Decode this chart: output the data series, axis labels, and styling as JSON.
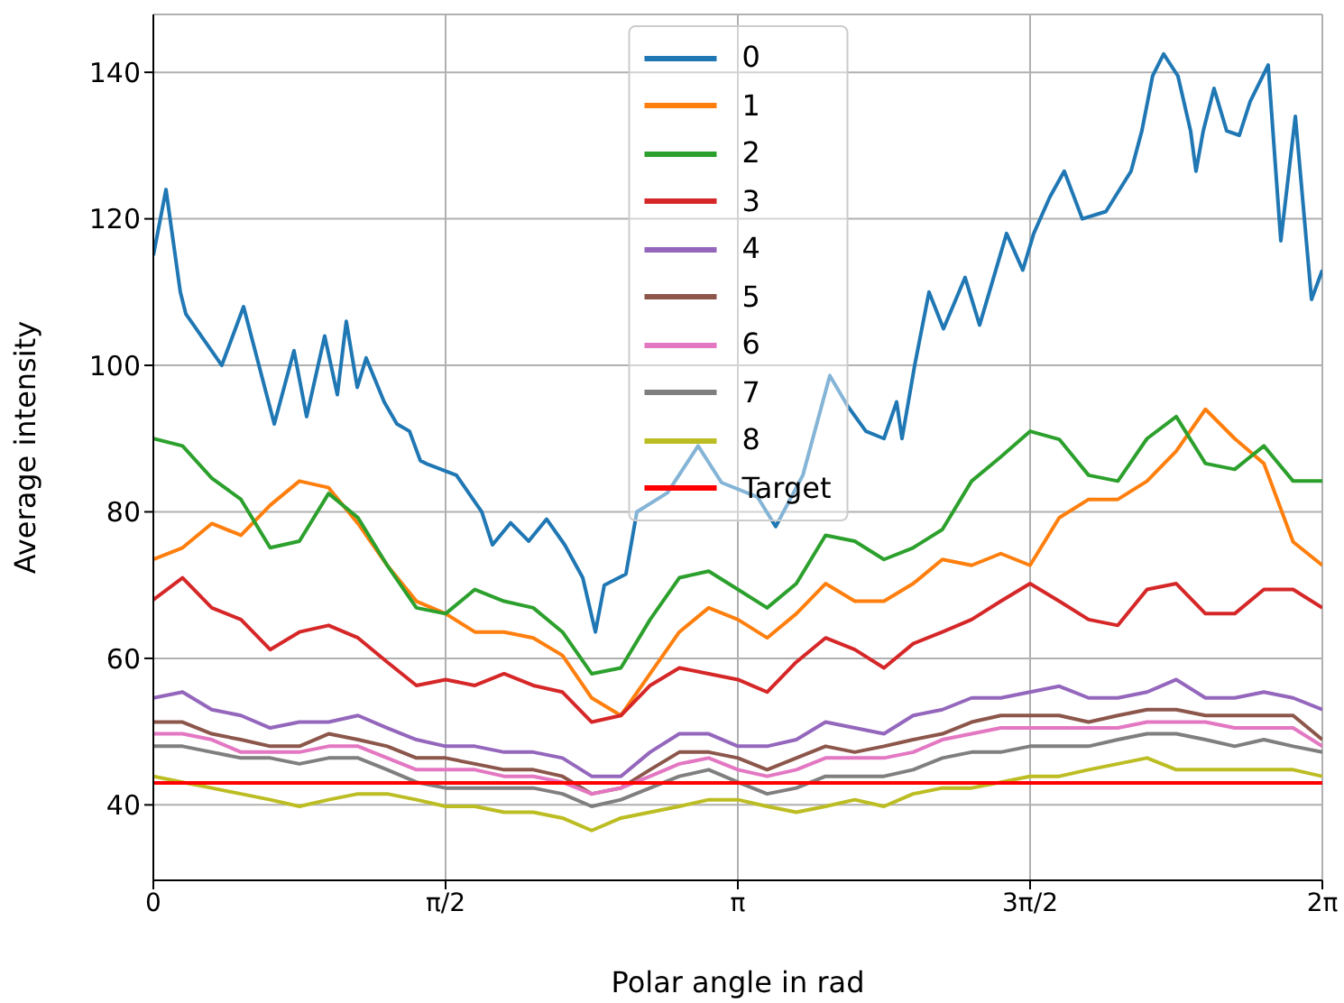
{
  "chart_data": {
    "type": "line",
    "xlabel": "Polar angle in rad",
    "ylabel": "Average intensity",
    "xlim": [
      0,
      6.2832
    ],
    "ylim": [
      29.7,
      147.9
    ],
    "xticks": [
      0,
      {
        "value": 1.5708,
        "label": "π/2"
      },
      {
        "value": 3.1416,
        "label": "π"
      },
      {
        "value": 4.7124,
        "label": "3π/2"
      },
      {
        "value": 6.2832,
        "label": "2π"
      }
    ],
    "yticks": [
      40,
      60,
      80,
      100,
      120,
      140
    ],
    "grid": true,
    "legend": "top",
    "x": [
      0,
      0.157,
      0.314,
      0.471,
      0.628,
      0.785,
      0.942,
      1.1,
      1.257,
      1.414,
      1.571,
      1.728,
      1.885,
      2.042,
      2.199,
      2.356,
      2.513,
      2.67,
      2.827,
      2.985,
      3.142,
      3.299,
      3.456,
      3.613,
      3.77,
      3.927,
      4.084,
      4.241,
      4.398,
      4.555,
      4.712,
      4.869,
      5.027,
      5.184,
      5.341,
      5.498,
      5.655,
      5.812,
      5.969,
      6.126,
      6.283
    ],
    "series": [
      {
        "name": "0",
        "color": "#1f77b4",
        "x": [
          0,
          0.068,
          0.145,
          0.175,
          0.368,
          0.485,
          0.65,
          0.756,
          0.824,
          0.921,
          0.989,
          1.037,
          1.096,
          1.144,
          1.241,
          1.309,
          1.377,
          1.435,
          1.474,
          1.629,
          1.765,
          1.823,
          1.92,
          2.017,
          2.114,
          2.211,
          2.308,
          2.376,
          2.424,
          2.54,
          2.599,
          2.763,
          2.928,
          3.054,
          3.248,
          3.345,
          3.491,
          3.636,
          3.733,
          3.83,
          3.927,
          3.995,
          4.024,
          4.092,
          4.169,
          4.247,
          4.363,
          4.441,
          4.586,
          4.673,
          4.732,
          4.819,
          4.896,
          4.993,
          5.12,
          5.255,
          5.313,
          5.371,
          5.43,
          5.507,
          5.575,
          5.604,
          5.643,
          5.701,
          5.769,
          5.837,
          5.895,
          5.992,
          6.06,
          6.138,
          6.225,
          6.283
        ],
        "values": [
          115,
          124,
          110,
          107,
          100,
          108,
          92,
          102,
          93,
          104,
          96,
          106,
          97,
          101,
          95,
          92,
          91,
          87,
          86.5,
          85,
          80,
          75.5,
          78.5,
          76,
          79,
          75.5,
          71,
          63.6,
          70,
          71.5,
          80,
          82.6,
          89,
          84,
          82,
          78,
          85,
          98.6,
          94.4,
          91,
          90,
          95,
          90,
          100,
          110,
          105,
          112,
          105.5,
          118,
          113,
          118,
          123,
          126.5,
          120,
          121,
          126.5,
          132,
          139.5,
          142.5,
          139.5,
          132,
          126.5,
          132,
          137.8,
          132,
          131.4,
          136,
          141,
          117,
          134,
          109,
          113
        ]
      },
      {
        "name": "1",
        "color": "#ff7f0e",
        "values": [
          73.5,
          75.1,
          78.4,
          76.8,
          80.9,
          84.2,
          83.3,
          78.4,
          72.7,
          67.8,
          66.1,
          63.6,
          63.6,
          62.8,
          60.4,
          54.6,
          52.2,
          57.9,
          63.6,
          66.9,
          65.3,
          62.8,
          66.1,
          70.2,
          67.8,
          67.8,
          70.2,
          73.5,
          72.7,
          74.3,
          72.7,
          79.2,
          81.7,
          81.7,
          84.2,
          88.3,
          94,
          90,
          86.6,
          75.9,
          72.7
        ]
      },
      {
        "name": "2",
        "color": "#2ca02c",
        "values": [
          90,
          89,
          84.6,
          81.7,
          75.1,
          76,
          82.5,
          79.2,
          72.7,
          66.9,
          66.1,
          69.4,
          67.8,
          66.9,
          63.6,
          57.9,
          58.7,
          65.3,
          71,
          71.9,
          69.4,
          66.9,
          70.2,
          76.8,
          76,
          73.5,
          75.1,
          77.6,
          84.2,
          87.5,
          91,
          89.9,
          85,
          84.2,
          90,
          93,
          86.6,
          85.8,
          89,
          84.2,
          84.2
        ]
      },
      {
        "name": "3",
        "color": "#d62728",
        "values": [
          68,
          71,
          66.9,
          65.3,
          61.2,
          63.6,
          64.5,
          62.8,
          59.5,
          56.3,
          57.1,
          56.3,
          57.9,
          56.3,
          55.4,
          51.3,
          52.2,
          56.3,
          58.7,
          57.9,
          57.1,
          55.4,
          59.5,
          62.8,
          61.2,
          58.7,
          62,
          63.6,
          65.3,
          67.8,
          70.2,
          67.8,
          65.3,
          64.5,
          69.4,
          70.2,
          66.1,
          66.1,
          69.4,
          69.4,
          66.9
        ]
      },
      {
        "name": "4",
        "color": "#9467bd",
        "values": [
          54.6,
          55.4,
          53,
          52.2,
          50.5,
          51.3,
          51.3,
          52.2,
          50.5,
          48.9,
          48,
          48,
          47.2,
          47.2,
          46.4,
          43.9,
          43.9,
          47.2,
          49.7,
          49.7,
          48,
          48,
          48.9,
          51.3,
          50.5,
          49.7,
          52.2,
          53,
          54.6,
          54.6,
          55.4,
          56.2,
          54.6,
          54.6,
          55.4,
          57.1,
          54.6,
          54.6,
          55.4,
          54.6,
          53
        ]
      },
      {
        "name": "5",
        "color": "#8c564b",
        "values": [
          51.3,
          51.3,
          49.7,
          48.9,
          48,
          48,
          49.7,
          48.9,
          48,
          46.4,
          46.4,
          45.6,
          44.8,
          44.8,
          43.9,
          41.5,
          42.3,
          44.8,
          47.2,
          47.2,
          46.4,
          44.8,
          46.4,
          48,
          47.2,
          48,
          48.9,
          49.7,
          51.3,
          52.2,
          52.2,
          52.2,
          51.3,
          52.2,
          53,
          53,
          52.2,
          52.2,
          52.2,
          52.2,
          48.9
        ]
      },
      {
        "name": "6",
        "color": "#e377c2",
        "values": [
          49.7,
          49.7,
          48.9,
          47.2,
          47.2,
          47.2,
          48,
          48,
          46.4,
          44.8,
          44.8,
          44.8,
          43.9,
          43.9,
          43.1,
          41.5,
          42.3,
          43.9,
          45.6,
          46.4,
          44.8,
          43.9,
          44.8,
          46.4,
          46.4,
          46.4,
          47.2,
          48.9,
          49.7,
          50.5,
          50.5,
          50.5,
          50.5,
          50.5,
          51.3,
          51.3,
          51.3,
          50.5,
          50.5,
          50.5,
          48
        ]
      },
      {
        "name": "7",
        "color": "#7f7f7f",
        "values": [
          48,
          48,
          47.2,
          46.4,
          46.4,
          45.6,
          46.4,
          46.4,
          44.8,
          43.1,
          42.3,
          42.3,
          42.3,
          42.3,
          41.5,
          39.8,
          40.7,
          42.3,
          43.9,
          44.8,
          43.1,
          41.5,
          42.3,
          43.9,
          43.9,
          43.9,
          44.8,
          46.4,
          47.2,
          47.2,
          48,
          48,
          48,
          48.9,
          49.7,
          49.7,
          48.9,
          48,
          48.9,
          48,
          47.2
        ]
      },
      {
        "name": "8",
        "color": "#bcbd22",
        "values": [
          43.9,
          43.1,
          42.3,
          41.5,
          40.7,
          39.8,
          40.7,
          41.5,
          41.5,
          40.7,
          39.8,
          39.8,
          39,
          39,
          38.2,
          36.5,
          38.2,
          39,
          39.8,
          40.7,
          40.7,
          39.8,
          39,
          39.8,
          40.7,
          39.8,
          41.5,
          42.3,
          42.3,
          43.1,
          43.9,
          43.9,
          44.8,
          45.6,
          46.4,
          44.8,
          44.8,
          44.8,
          44.8,
          44.8,
          43.9
        ]
      },
      {
        "name": "Target",
        "color": "#ff0000",
        "x": [
          0,
          6.283
        ],
        "values": [
          43,
          43
        ]
      }
    ]
  }
}
